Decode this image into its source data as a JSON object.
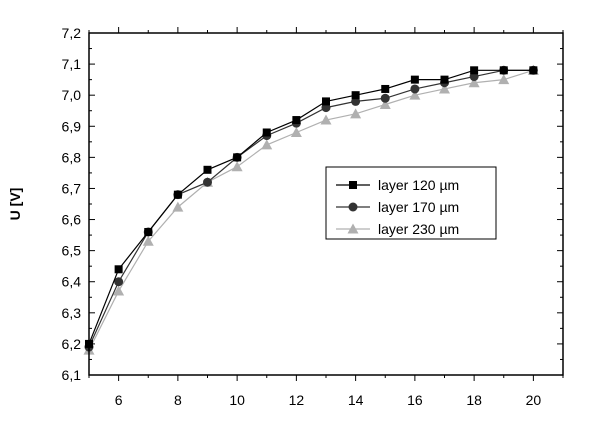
{
  "chart_data": {
    "type": "line",
    "title": "",
    "xlabel": "",
    "ylabel": "U [V]",
    "xlim": [
      5,
      21
    ],
    "ylim": [
      6.1,
      7.2
    ],
    "x_ticks": [
      6,
      8,
      10,
      12,
      14,
      16,
      18,
      20
    ],
    "y_ticks": [
      6.1,
      6.2,
      6.3,
      6.4,
      6.5,
      6.6,
      6.7,
      6.8,
      6.9,
      7.0,
      7.1,
      7.2
    ],
    "y_tick_labels": [
      "6,1",
      "6,2",
      "6,3",
      "6,4",
      "6,5",
      "6,6",
      "6,7",
      "6,8",
      "6,9",
      "7,0",
      "7,1",
      "7,2"
    ],
    "grid": false,
    "legend_position": "center-right",
    "series": [
      {
        "name": "layer 120 µm",
        "marker": "square",
        "color": "#000000",
        "x": [
          5,
          6,
          7,
          8,
          9,
          10,
          11,
          12,
          13,
          14,
          15,
          16,
          17,
          18,
          19,
          20
        ],
        "values": [
          6.2,
          6.44,
          6.56,
          6.68,
          6.76,
          6.8,
          6.88,
          6.92,
          6.98,
          7.0,
          7.02,
          7.05,
          7.05,
          7.08,
          7.08,
          7.08
        ]
      },
      {
        "name": "layer 170 µm",
        "marker": "circle",
        "color": "#333333",
        "x": [
          5,
          6,
          7,
          8,
          9,
          10,
          11,
          12,
          13,
          14,
          15,
          16,
          17,
          18,
          19,
          20
        ],
        "values": [
          6.19,
          6.4,
          6.56,
          6.68,
          6.72,
          6.8,
          6.87,
          6.91,
          6.96,
          6.98,
          6.99,
          7.02,
          7.04,
          7.06,
          7.08,
          7.08
        ]
      },
      {
        "name": "layer 230 µm",
        "marker": "triangle",
        "color": "#b0b0b0",
        "x": [
          5,
          6,
          7,
          8,
          9,
          10,
          11,
          12,
          13,
          14,
          15,
          16,
          17,
          18,
          19,
          20
        ],
        "values": [
          6.18,
          6.37,
          6.53,
          6.64,
          6.72,
          6.77,
          6.84,
          6.88,
          6.92,
          6.94,
          6.97,
          7.0,
          7.02,
          7.04,
          7.05,
          7.08
        ]
      }
    ]
  }
}
